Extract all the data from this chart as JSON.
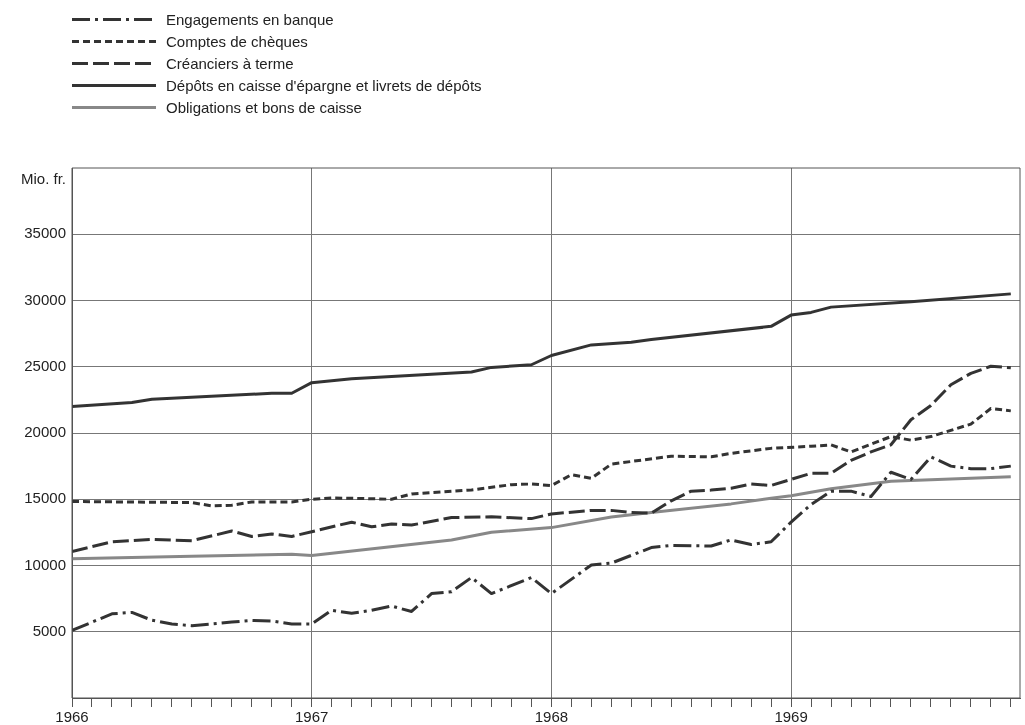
{
  "chart_data": {
    "type": "line",
    "ylabel": "Mio. fr.",
    "legend": "top left",
    "grid": true,
    "marker": "none",
    "xlim": [
      "1966-01",
      "1969-12-15"
    ],
    "ylim": [
      0,
      40000
    ],
    "yticks": [
      5000,
      10000,
      15000,
      20000,
      25000,
      30000,
      35000
    ],
    "xticks": [
      {
        "value": "1966-01",
        "label": "1966"
      },
      {
        "value": "1966-02",
        "label": null
      },
      {
        "value": "1966-03",
        "label": null
      },
      {
        "value": "1966-04",
        "label": null
      },
      {
        "value": "1966-05",
        "label": null
      },
      {
        "value": "1966-06",
        "label": null
      },
      {
        "value": "1966-07",
        "label": null
      },
      {
        "value": "1966-08",
        "label": null
      },
      {
        "value": "1966-09",
        "label": null
      },
      {
        "value": "1966-10",
        "label": null
      },
      {
        "value": "1966-11",
        "label": null
      },
      {
        "value": "1966-12",
        "label": null
      },
      {
        "value": "1967-01",
        "label": "1967"
      },
      {
        "value": "1967-02",
        "label": null
      },
      {
        "value": "1967-03",
        "label": null
      },
      {
        "value": "1967-04",
        "label": null
      },
      {
        "value": "1967-05",
        "label": null
      },
      {
        "value": "1967-06",
        "label": null
      },
      {
        "value": "1967-07",
        "label": null
      },
      {
        "value": "1967-08",
        "label": null
      },
      {
        "value": "1967-09",
        "label": null
      },
      {
        "value": "1967-10",
        "label": null
      },
      {
        "value": "1967-11",
        "label": null
      },
      {
        "value": "1967-12",
        "label": null
      },
      {
        "value": "1968-01",
        "label": "1968"
      },
      {
        "value": "1968-02",
        "label": null
      },
      {
        "value": "1968-03",
        "label": null
      },
      {
        "value": "1968-04",
        "label": null
      },
      {
        "value": "1968-05",
        "label": null
      },
      {
        "value": "1968-06",
        "label": null
      },
      {
        "value": "1968-07",
        "label": null
      },
      {
        "value": "1968-08",
        "label": null
      },
      {
        "value": "1968-09",
        "label": null
      },
      {
        "value": "1968-10",
        "label": null
      },
      {
        "value": "1968-11",
        "label": null
      },
      {
        "value": "1968-12",
        "label": null
      },
      {
        "value": "1969-01",
        "label": "1969"
      },
      {
        "value": "1969-02",
        "label": null
      },
      {
        "value": "1969-03",
        "label": null
      },
      {
        "value": "1969-04",
        "label": null
      },
      {
        "value": "1969-05",
        "label": null
      },
      {
        "value": "1969-06",
        "label": null
      },
      {
        "value": "1969-07",
        "label": null
      },
      {
        "value": "1969-08",
        "label": null
      },
      {
        "value": "1969-09",
        "label": null
      },
      {
        "value": "1969-10",
        "label": null
      },
      {
        "value": "1969-11",
        "label": null
      },
      {
        "value": "1969-12",
        "label": null
      }
    ],
    "series": [
      {
        "name": "Engagements en banque",
        "color": "#333333",
        "line_style": "dashdot",
        "x": [
          "1966-01",
          "1966-03",
          "1966-04",
          "1966-05",
          "1966-06",
          "1966-07",
          "1966-09",
          "1966-10",
          "1966-11",
          "1966-12",
          "1967-01",
          "1967-02",
          "1967-03",
          "1967-04",
          "1967-05",
          "1967-06",
          "1967-07",
          "1967-08",
          "1967-09",
          "1967-10",
          "1967-12",
          "1968-01",
          "1968-03",
          "1968-04",
          "1968-06",
          "1968-07",
          "1968-09",
          "1968-10",
          "1968-11",
          "1968-12",
          "1969-01",
          "1969-02",
          "1969-03",
          "1969-04",
          "1969-05",
          "1969-06",
          "1969-07",
          "1969-08",
          "1969-09",
          "1969-10",
          "1969-11",
          "1969-12"
        ],
        "values": [
          5100,
          6350,
          6460,
          5870,
          5590,
          5460,
          5730,
          5860,
          5810,
          5590,
          5590,
          6620,
          6400,
          6620,
          6940,
          6530,
          7880,
          8020,
          9090,
          7880,
          9090,
          7880,
          10040,
          10180,
          11350,
          11520,
          11470,
          11930,
          11580,
          11790,
          13270,
          14600,
          15610,
          15610,
          15210,
          17040,
          16500,
          18200,
          17500,
          17310,
          17310,
          17500
        ]
      },
      {
        "name": "Comptes de chèques",
        "color": "#333333",
        "line_style": "dotted",
        "x": [
          "1966-01",
          "1966-07",
          "1966-08",
          "1966-09",
          "1966-10",
          "1966-12",
          "1967-01",
          "1967-02",
          "1967-03",
          "1967-05",
          "1967-06",
          "1967-09",
          "1967-11",
          "1967-12",
          "1968-01",
          "1968-02",
          "1968-03",
          "1968-04",
          "1968-07",
          "1968-09",
          "1968-10",
          "1968-12",
          "1969-02",
          "1969-03",
          "1969-04",
          "1969-06",
          "1969-07",
          "1969-08",
          "1969-10",
          "1969-11",
          "1969-12"
        ],
        "values": [
          14830,
          14750,
          14500,
          14550,
          14800,
          14800,
          15000,
          15100,
          15070,
          15000,
          15400,
          15700,
          16100,
          16150,
          16030,
          16850,
          16580,
          17650,
          18250,
          18200,
          18460,
          18840,
          19000,
          19100,
          18570,
          19730,
          19460,
          19730,
          20670,
          21850,
          21670
        ]
      },
      {
        "name": "Créanciers à terme",
        "color": "#333333",
        "line_style": "dashed",
        "x": [
          "1966-01",
          "1966-03",
          "1966-05",
          "1966-07",
          "1966-09",
          "1966-10",
          "1966-11",
          "1966-12",
          "1967-01",
          "1967-03",
          "1967-04",
          "1967-05",
          "1967-06",
          "1967-08",
          "1967-10",
          "1967-12",
          "1968-01",
          "1968-03",
          "1968-04",
          "1968-05",
          "1968-06",
          "1968-07",
          "1968-08",
          "1968-09",
          "1968-10",
          "1968-11",
          "1968-12",
          "1969-01",
          "1969-02",
          "1969-03",
          "1969-04",
          "1969-05",
          "1969-06",
          "1969-07",
          "1969-08",
          "1969-09",
          "1969-10",
          "1969-11",
          "1969-12"
        ],
        "values": [
          11060,
          11790,
          11970,
          11870,
          12600,
          12190,
          12380,
          12190,
          12550,
          13270,
          12920,
          13130,
          13050,
          13620,
          13670,
          13540,
          13890,
          14160,
          14160,
          14000,
          13950,
          14880,
          15610,
          15690,
          15830,
          16150,
          16040,
          16500,
          16960,
          16960,
          17930,
          18570,
          19110,
          21000,
          22080,
          23640,
          24500,
          25040,
          24930
        ]
      },
      {
        "name": "Dépôts en caisse d'épargne et livrets de dépôts",
        "color": "#333333",
        "line_style": "solid",
        "x": [
          "1966-01",
          "1966-04",
          "1966-05",
          "1966-11",
          "1966-12",
          "1967-01",
          "1967-03",
          "1967-09",
          "1967-10",
          "1967-12",
          "1968-01",
          "1968-03",
          "1968-05",
          "1968-06",
          "1968-12",
          "1969-01",
          "1969-02",
          "1969-03",
          "1969-07",
          "1969-12"
        ],
        "values": [
          22000,
          22300,
          22550,
          23000,
          23000,
          23800,
          24100,
          24600,
          24950,
          25150,
          25850,
          26650,
          26850,
          27050,
          28050,
          28900,
          29100,
          29500,
          29900,
          30500
        ]
      },
      {
        "name": "Obligations et bons de caisse",
        "color": "#888888",
        "line_style": "solid",
        "x": [
          "1966-01",
          "1966-07",
          "1966-12",
          "1967-01",
          "1967-08",
          "1967-10",
          "1968-01",
          "1968-04",
          "1968-06",
          "1968-10",
          "1968-12",
          "1969-01",
          "1969-03",
          "1969-06",
          "1969-12"
        ],
        "values": [
          10500,
          10700,
          10850,
          10750,
          11930,
          12510,
          12860,
          13660,
          14000,
          14650,
          15080,
          15270,
          15800,
          16350,
          16700
        ]
      }
    ]
  }
}
